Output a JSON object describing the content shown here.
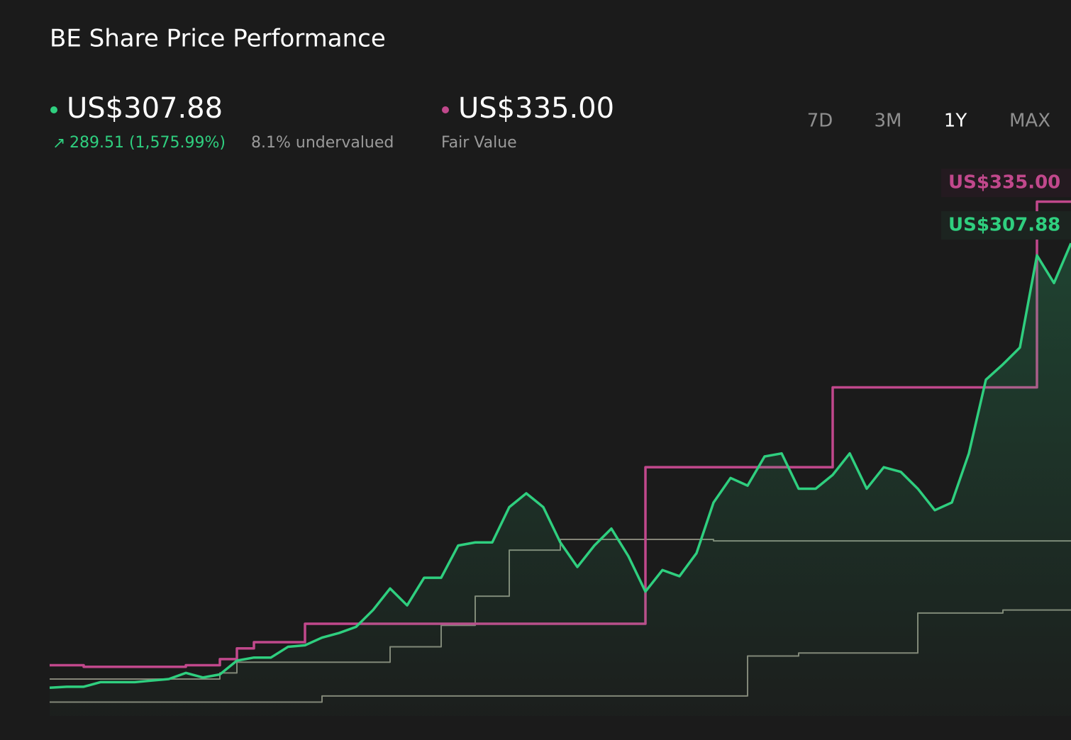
{
  "chart_data": {
    "type": "line",
    "title": "BE Share Price Performance",
    "price_label": "US$307.88",
    "change_label": "289.51 (1,575.99%)",
    "valuation_label": "8.1% undervalued",
    "fair_value_label": "US$335.00",
    "fair_value_caption": "Fair Value",
    "ranges": [
      "7D",
      "3M",
      "1Y",
      "MAX"
    ],
    "active_range": "1Y",
    "ylim": [
      0,
      350
    ],
    "series": [
      {
        "name": "US$307.88",
        "color": "#2fcf7f",
        "area": true,
        "values": [
          18.37,
          19,
          19,
          22,
          22,
          22,
          23,
          24,
          28,
          25,
          27,
          36,
          38,
          38,
          45,
          46,
          51,
          54,
          58,
          69,
          83,
          72,
          90,
          90,
          111,
          113,
          113,
          136,
          145,
          136,
          113,
          97,
          111,
          122,
          104,
          81,
          95,
          91,
          106,
          139,
          155,
          150,
          169,
          171,
          148,
          148,
          157,
          171,
          148,
          162,
          159,
          148,
          134,
          139,
          171,
          219,
          229,
          240,
          300,
          282,
          307.88
        ]
      },
      {
        "name": "US$335.00",
        "color": "#c1488c",
        "step": true,
        "values": [
          33,
          33,
          32,
          32,
          32,
          32,
          32,
          32,
          33,
          33,
          37,
          44,
          48,
          48,
          48,
          60,
          60,
          60,
          60,
          60,
          60,
          60,
          60,
          60,
          60,
          60,
          60,
          60,
          60,
          60,
          60,
          60,
          60,
          60,
          60,
          162,
          162,
          162,
          162,
          162,
          162,
          162,
          162,
          162,
          162,
          162,
          214,
          214,
          214,
          214,
          214,
          214,
          214,
          214,
          214,
          214,
          214,
          214,
          335,
          335,
          335
        ]
      },
      {
        "color": "#858578",
        "step": true,
        "values": [
          24,
          24,
          24,
          24,
          24,
          24,
          24,
          24,
          24,
          24,
          28,
          35,
          35,
          35,
          35,
          35,
          35,
          35,
          35,
          35,
          45,
          45,
          45,
          59,
          59,
          78,
          78,
          108,
          108,
          108,
          115,
          115,
          115,
          115,
          115,
          115,
          115,
          115,
          115,
          114,
          114,
          114,
          114,
          114,
          114,
          114,
          114,
          114,
          114,
          114,
          114,
          114,
          114,
          114,
          114,
          114,
          114,
          114,
          114,
          114,
          114
        ]
      },
      {
        "color": "#858578",
        "step": true,
        "values": [
          9,
          9,
          9,
          9,
          9,
          9,
          9,
          9,
          9,
          9,
          9,
          9,
          9,
          9,
          9,
          9,
          13,
          13,
          13,
          13,
          13,
          13,
          13,
          13,
          13,
          13,
          13,
          13,
          13,
          13,
          13,
          13,
          13,
          13,
          13,
          13,
          13,
          13,
          13,
          13,
          13,
          39,
          39,
          39,
          41,
          41,
          41,
          41,
          41,
          41,
          41,
          67,
          67,
          67,
          67,
          67,
          69,
          69,
          69,
          69,
          69
        ]
      }
    ]
  }
}
